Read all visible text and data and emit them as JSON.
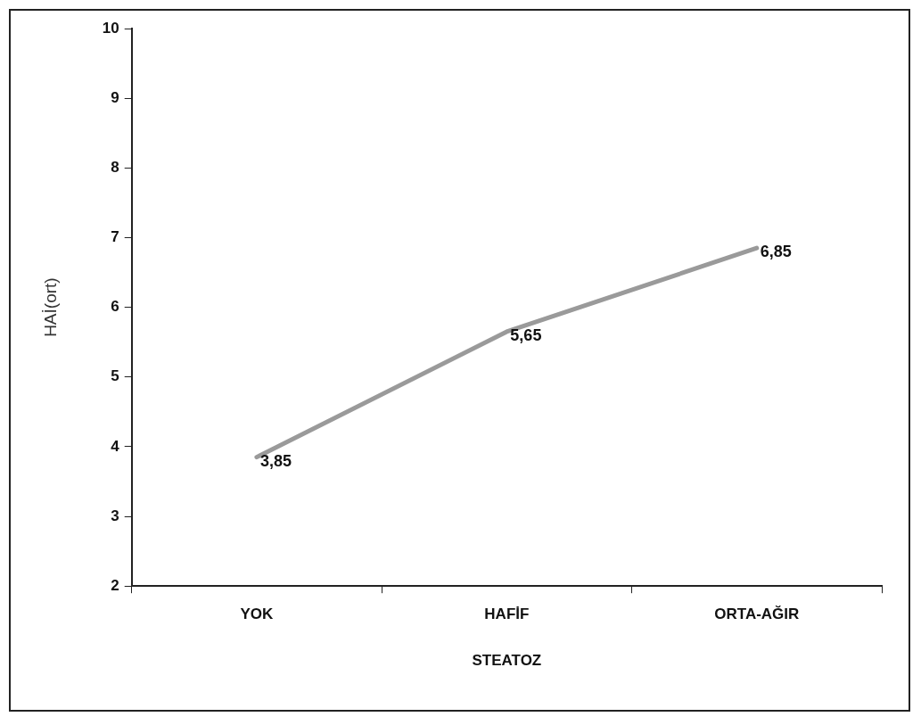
{
  "chart_data": {
    "type": "line",
    "xlabel": "STEATOZ",
    "ylabel": "HAİ(ort)",
    "categories": [
      "YOK",
      "HAFİF",
      "ORTA-AĞIR"
    ],
    "series": [
      {
        "color": "#9a9a9a",
        "values": [
          3.85,
          5.65,
          6.85
        ],
        "value_labels": [
          "3,85",
          "5,65",
          "6,85"
        ]
      }
    ],
    "ylim": [
      2,
      10
    ],
    "yticks": [
      2,
      3,
      4,
      5,
      6,
      7,
      8,
      9,
      10
    ],
    "grid": false,
    "legend": false,
    "marker": "none",
    "line_style": "solid"
  }
}
